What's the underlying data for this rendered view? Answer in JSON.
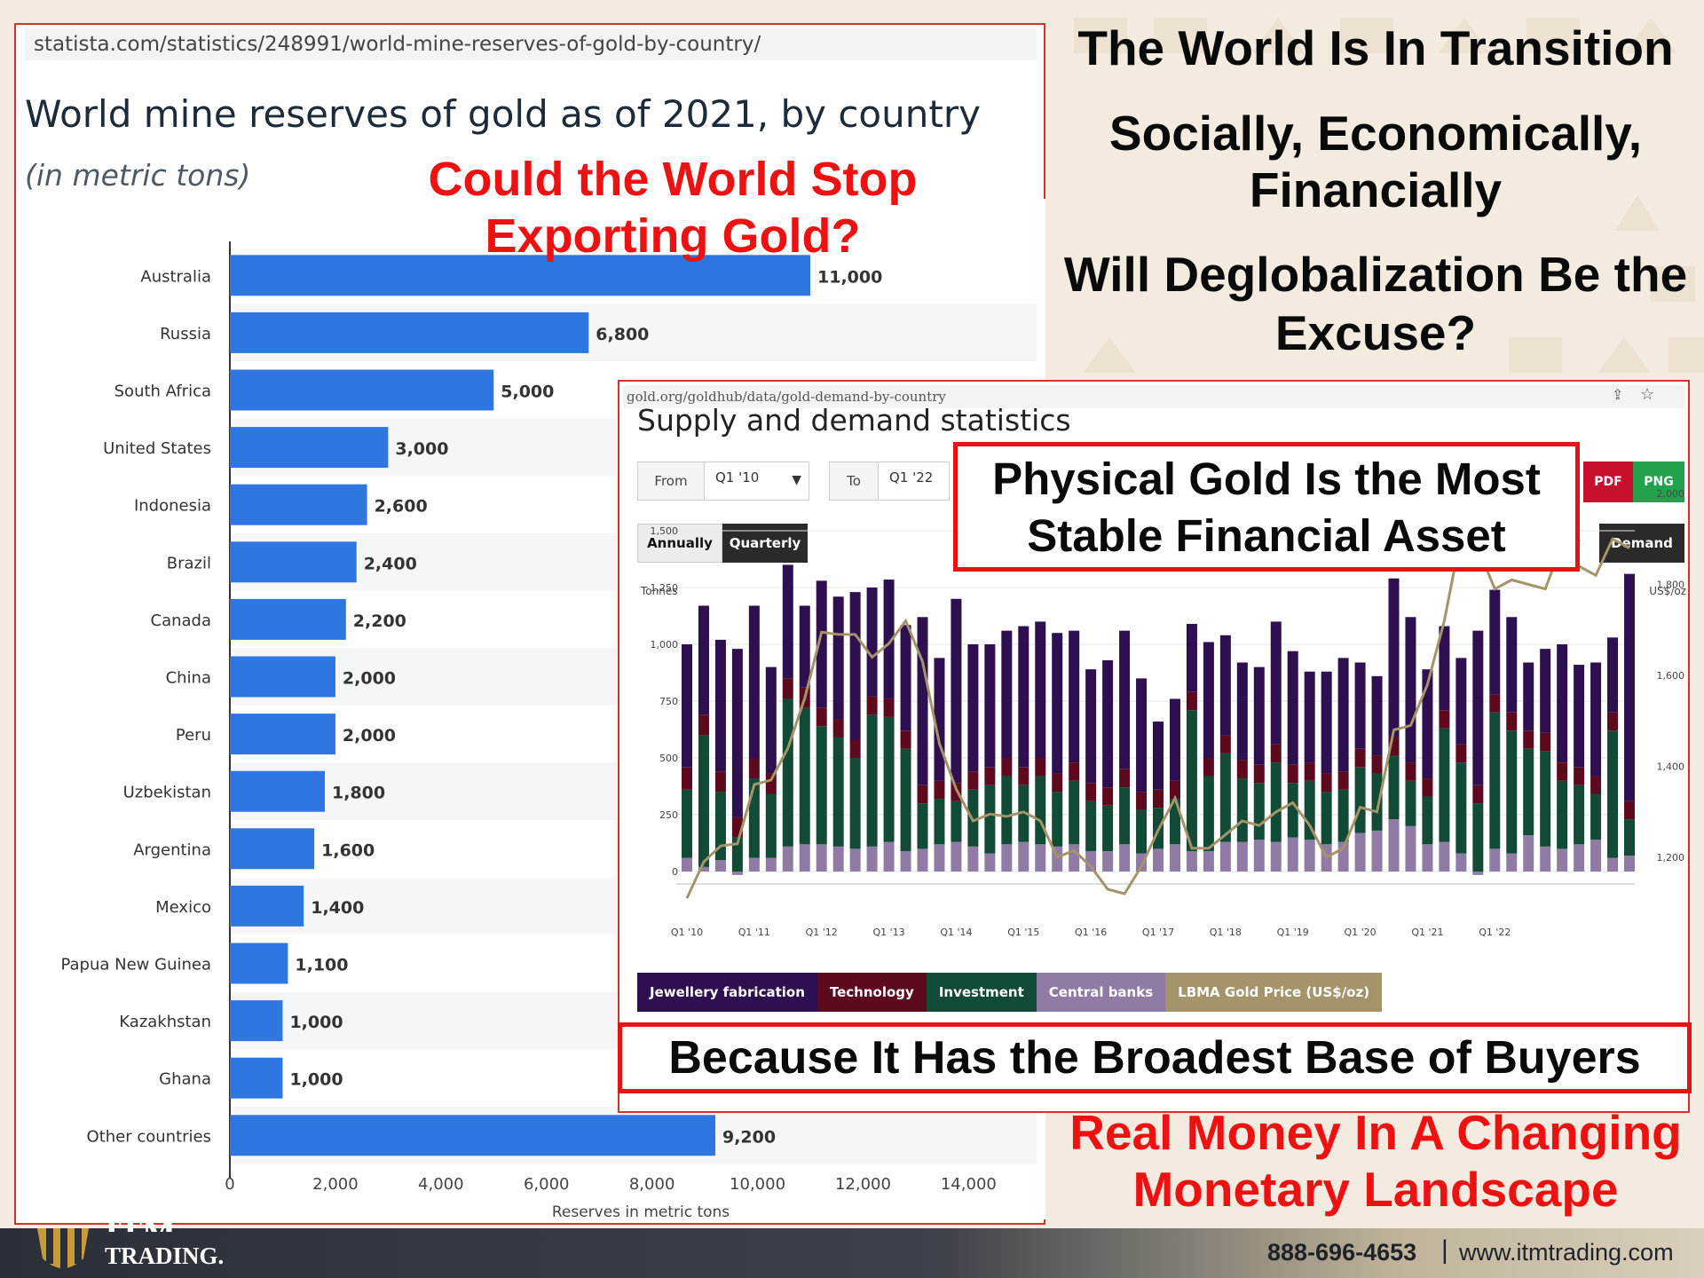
{
  "statista": {
    "url": "statista.com/statistics/248991/world-mine-reserves-of-gold-by-country/",
    "title": "World mine reserves of gold as of 2021, by country",
    "subtitle": "(in metric tons)",
    "overlay_headline_line1": "Could the World Stop",
    "overlay_headline_line2": "Exporting Gold?"
  },
  "headlines": {
    "transition": "The World Is In Transition",
    "social_line1": "Socially, Economically,",
    "social_line2": "Financially",
    "deglobal_line1": "Will Deglobalization Be the",
    "deglobal_line2": "Excuse?",
    "real_line1": "Real Money In A Changing",
    "real_line2": "Monetary Landscape"
  },
  "gold_org": {
    "url": "gold.org/goldhub/data/gold-demand-by-country",
    "heading": "Supply and demand statistics",
    "from_label": "From",
    "from_value": "Q1 '10",
    "to_label": "To",
    "to_value": "Q1 '22",
    "btn_annually": "Annually",
    "btn_quarterly": "Quarterly",
    "btn_supply_partial": "ly",
    "btn_demand": "Demand",
    "btn_pdf": "PDF",
    "btn_png": "PNG",
    "physical_line1": "Physical Gold Is the Most",
    "physical_line2": "Stable Financial Asset",
    "legend": [
      {
        "label": "Jewellery fabrication",
        "color": "#2e1050"
      },
      {
        "label": "Technology",
        "color": "#5e0a1e"
      },
      {
        "label": "Investment",
        "color": "#114a35"
      },
      {
        "label": "Central banks",
        "color": "#8f7ba6"
      },
      {
        "label": "LBMA Gold Price (US$/oz)",
        "color": "#a5936a"
      }
    ]
  },
  "because": "Because It Has the Broadest Base of Buyers",
  "footer": {
    "logo_text": "TRADING.",
    "logo_itm": "ITM",
    "phone": "888-696-4653",
    "separator": "|",
    "website": "www.itmtrading.com"
  },
  "chart_data": [
    {
      "type": "bar",
      "orientation": "horizontal",
      "title": "World mine reserves of gold as of 2021, by country",
      "subtitle": "(in metric tons)",
      "xlabel": "Reserves in metric tons",
      "xlim": [
        0,
        14000
      ],
      "xticks": [
        0,
        2000,
        4000,
        6000,
        8000,
        10000,
        12000,
        14000
      ],
      "xtick_labels": [
        "0",
        "2,000",
        "4,000",
        "6,000",
        "8,000",
        "10,000",
        "12,000",
        "14,000"
      ],
      "categories": [
        "Australia",
        "Russia",
        "South Africa",
        "United States",
        "Indonesia",
        "Brazil",
        "Canada",
        "China",
        "Peru",
        "Uzbekistan",
        "Argentina",
        "Mexico",
        "Papua New Guinea",
        "Kazakhstan",
        "Ghana",
        "Other countries"
      ],
      "values": [
        11000,
        6800,
        5000,
        3000,
        2600,
        2400,
        2200,
        2000,
        2000,
        1800,
        1600,
        1400,
        1100,
        1000,
        1000,
        9200
      ],
      "value_labels": [
        "11,000",
        "6,800",
        "5,000",
        "3,000",
        "2,600",
        "2,400",
        "2,200",
        "2,000",
        "2,000",
        "1,800",
        "1,600",
        "1,400",
        "1,100",
        "1,000",
        "1,000",
        "9,200"
      ],
      "bar_color": "#2f76e0"
    },
    {
      "type": "bar",
      "stacked": true,
      "title": "Supply and demand statistics",
      "y_left_label": "Tonnes",
      "y_right_label": "US$/oz",
      "ylim_left": [
        0,
        1500
      ],
      "yticks_left": [
        "0",
        "250",
        "500",
        "750",
        "1,000",
        "1,250",
        "1,500"
      ],
      "ylim_right": [
        1100,
        2000
      ],
      "yticks_right": [
        "1,200",
        "1,400",
        "1,600",
        "1,800",
        "2,000"
      ],
      "x_tick_labels": [
        "Q1 '10",
        "Q1 '11",
        "Q1 '12",
        "Q1 '13",
        "Q1 '14",
        "Q1 '15",
        "Q1 '16",
        "Q1 '17",
        "Q1 '18",
        "Q1 '19",
        "Q1 '20",
        "Q1 '21",
        "Q1 '22"
      ],
      "series": [
        {
          "name": "Central banks",
          "color": "#8f7ba6",
          "values": [
            60,
            20,
            50,
            -15,
            60,
            60,
            110,
            120,
            120,
            110,
            100,
            110,
            130,
            90,
            100,
            120,
            130,
            110,
            80,
            120,
            130,
            120,
            110,
            120,
            90,
            90,
            120,
            80,
            100,
            120,
            90,
            90,
            130,
            130,
            140,
            130,
            150,
            140,
            120,
            130,
            170,
            180,
            230,
            200,
            120,
            130,
            80,
            -15,
            100,
            80,
            160,
            110,
            100,
            120,
            140,
            60,
            70
          ]
        },
        {
          "name": "Investment",
          "color": "#114a35",
          "values": [
            300,
            580,
            300,
            150,
            350,
            280,
            650,
            600,
            520,
            480,
            400,
            580,
            550,
            450,
            200,
            200,
            180,
            250,
            300,
            300,
            250,
            300,
            240,
            280,
            220,
            200,
            250,
            190,
            180,
            200,
            620,
            330,
            390,
            280,
            250,
            350,
            240,
            260,
            230,
            230,
            290,
            250,
            280,
            200,
            210,
            500,
            400,
            300,
            600,
            540,
            380,
            420,
            300,
            260,
            200,
            560,
            160
          ]
        },
        {
          "name": "Technology",
          "color": "#5e0a1e",
          "values": [
            100,
            90,
            90,
            90,
            90,
            90,
            90,
            90,
            80,
            80,
            80,
            80,
            80,
            80,
            80,
            80,
            80,
            80,
            80,
            80,
            80,
            80,
            80,
            80,
            80,
            80,
            80,
            80,
            80,
            80,
            80,
            80,
            80,
            80,
            80,
            80,
            80,
            80,
            80,
            80,
            80,
            80,
            80,
            80,
            80,
            80,
            80,
            80,
            80,
            80,
            80,
            80,
            80,
            80,
            80,
            80,
            80
          ]
        },
        {
          "name": "Jewellery fabrication",
          "color": "#2e1050",
          "values": [
            540,
            480,
            580,
            740,
            670,
            470,
            500,
            360,
            560,
            540,
            650,
            480,
            525,
            465,
            740,
            540,
            810,
            560,
            540,
            560,
            620,
            600,
            620,
            580,
            500,
            560,
            610,
            500,
            300,
            360,
            300,
            510,
            440,
            430,
            430,
            540,
            500,
            400,
            450,
            500,
            380,
            350,
            700,
            640,
            480,
            370,
            380,
            680,
            460,
            420,
            300,
            370,
            520,
            450,
            500,
            330,
            1000
          ]
        }
      ],
      "line_series": {
        "name": "LBMA Gold Price (US$/oz)",
        "color": "#a5936a",
        "values": [
          1110,
          1190,
          1225,
          1230,
          1360,
          1370,
          1440,
          1550,
          1695,
          1690,
          1690,
          1640,
          1670,
          1720,
          1630,
          1450,
          1350,
          1280,
          1295,
          1290,
          1300,
          1280,
          1200,
          1215,
          1180,
          1130,
          1120,
          1180,
          1260,
          1330,
          1220,
          1220,
          1250,
          1280,
          1270,
          1300,
          1320,
          1270,
          1200,
          1220,
          1310,
          1300,
          1480,
          1490,
          1580,
          1720,
          1910,
          1880,
          1790,
          1810,
          1800,
          1790,
          1890,
          1840,
          1820,
          1900,
          1880
        ],
        "range": [
          1100,
          2000
        ]
      }
    }
  ]
}
